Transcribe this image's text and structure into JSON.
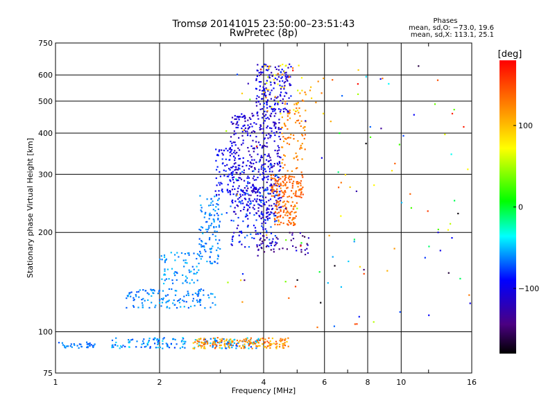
{
  "chart_data": {
    "type": "scatter",
    "title": "Tromsø 20141015 23:50:00–23:51:43",
    "subtitle": "RwPretec (8p)",
    "xlabel": "Frequency [MHz]",
    "ylabel": "Stationary phase Virtual Height [km]",
    "x_scale": "log",
    "y_scale": "log",
    "xlim": [
      1,
      16
    ],
    "ylim": [
      75,
      750
    ],
    "x_ticks": [
      1,
      2,
      4,
      6,
      8,
      10,
      16
    ],
    "x_tick_labels": [
      "1",
      "2",
      "4",
      "6",
      "8",
      "10",
      "16"
    ],
    "y_ticks": [
      75,
      100,
      200,
      300,
      400,
      500,
      600,
      750
    ],
    "y_tick_labels": [
      "75",
      "100",
      "200",
      "300",
      "400",
      "500",
      "600",
      "750"
    ],
    "grid": true,
    "phases_box": {
      "title": "Phases",
      "line1": "mean, sd,O: −73.0, 19.6",
      "line2": "mean, sd,X: 113.1, 25.1"
    },
    "colorbar": {
      "label": "[deg]",
      "range": [
        -180,
        180
      ],
      "ticks": [
        100,
        0,
        -100
      ],
      "tick_labels": [
        "100",
        "0",
        "−100"
      ]
    },
    "clusters": [
      {
        "x": [
          1.0,
          1.3
        ],
        "y": [
          89,
          93
        ],
        "phase": [
          -75,
          -55
        ],
        "n": 35
      },
      {
        "x": [
          1.45,
          3.9
        ],
        "y": [
          89,
          96
        ],
        "phase": [
          -80,
          -40
        ],
        "n": 170
      },
      {
        "x": [
          2.5,
          4.8
        ],
        "y": [
          89,
          96
        ],
        "phase": [
          90,
          150
        ],
        "n": 160
      },
      {
        "x": [
          1.6,
          2.9
        ],
        "y": [
          118,
          135
        ],
        "phase": [
          -75,
          -50
        ],
        "n": 130
      },
      {
        "x": [
          2.0,
          2.6
        ],
        "y": [
          140,
          175
        ],
        "phase": [
          -70,
          -45
        ],
        "n": 70
      },
      {
        "x": [
          2.6,
          3.0
        ],
        "y": [
          160,
          260
        ],
        "phase": [
          -75,
          -50
        ],
        "n": 110
      },
      {
        "x": [
          2.9,
          3.3
        ],
        "y": [
          260,
          360
        ],
        "phase": [
          -110,
          -80
        ],
        "n": 70
      },
      {
        "x": [
          3.2,
          4.5
        ],
        "y": [
          220,
          460
        ],
        "phase": [
          -130,
          -90
        ],
        "n": 420
      },
      {
        "x": [
          3.2,
          4.4
        ],
        "y": [
          180,
          330
        ],
        "phase": [
          -120,
          -60
        ],
        "n": 170
      },
      {
        "x": [
          3.8,
          4.8
        ],
        "y": [
          460,
          650
        ],
        "phase": [
          -125,
          -80
        ],
        "n": 160
      },
      {
        "x": [
          4.2,
          5.2
        ],
        "y": [
          255,
          300
        ],
        "phase": [
          125,
          150
        ],
        "n": 110
      },
      {
        "x": [
          4.3,
          5.0
        ],
        "y": [
          210,
          250
        ],
        "phase": [
          120,
          150
        ],
        "n": 80
      },
      {
        "x": [
          4.5,
          5.3
        ],
        "y": [
          300,
          520
        ],
        "phase": [
          110,
          140
        ],
        "n": 80
      },
      {
        "x": [
          3.8,
          5.4
        ],
        "y": [
          170,
          200
        ],
        "phase": [
          -160,
          -110
        ],
        "n": 50
      },
      {
        "x": [
          4.0,
          6.0
        ],
        "y": [
          450,
          650
        ],
        "phase": [
          60,
          140
        ],
        "n": 50
      },
      {
        "x": [
          3.0,
          16.0
        ],
        "y": [
          100,
          650
        ],
        "phase": [
          -180,
          180
        ],
        "n": 120
      }
    ]
  }
}
